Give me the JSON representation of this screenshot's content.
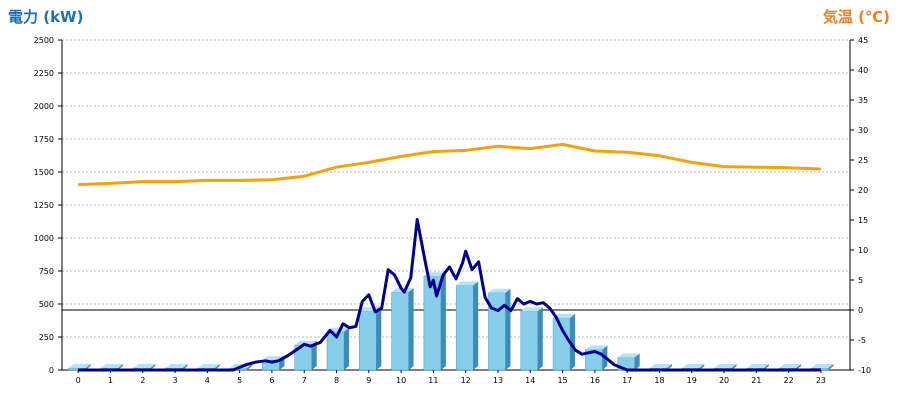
{
  "chart_data": {
    "type": "bar",
    "left_axis": {
      "label": "電力 (kW)",
      "color": "#1f6fb5",
      "min": 0,
      "max": 2500,
      "ticks": [
        0,
        250,
        500,
        750,
        1000,
        1250,
        1500,
        1750,
        2000,
        2250,
        2500
      ]
    },
    "right_axis": {
      "label": "気温 (℃)",
      "color": "#f07f1e",
      "min": -10,
      "max": 45,
      "ticks": [
        -10,
        -5,
        0,
        5,
        10,
        15,
        20,
        25,
        30,
        35,
        40,
        45
      ]
    },
    "categories": [
      "0",
      "1",
      "2",
      "3",
      "4",
      "5",
      "6",
      "7",
      "8",
      "9",
      "10",
      "11",
      "12",
      "13",
      "14",
      "15",
      "16",
      "17",
      "18",
      "19",
      "20",
      "21",
      "22",
      "23"
    ],
    "series": [
      {
        "kind": "bar",
        "axis": "left",
        "color": "#87ceea",
        "values": [
          15,
          15,
          15,
          15,
          15,
          15,
          75,
          190,
          290,
          445,
          590,
          710,
          640,
          585,
          445,
          395,
          155,
          95,
          15,
          15,
          15,
          15,
          15,
          15
        ]
      },
      {
        "kind": "line",
        "axis": "left",
        "color": "#00008b",
        "x": [
          0,
          0.5,
          1,
          1.5,
          2,
          2.5,
          3,
          3.5,
          4,
          4.5,
          4.8,
          5,
          5.2,
          5.5,
          5.8,
          6,
          6.2,
          6.5,
          6.8,
          7,
          7.2,
          7.5,
          7.8,
          8,
          8.2,
          8.4,
          8.6,
          8.8,
          9,
          9.2,
          9.4,
          9.6,
          9.8,
          10,
          10.1,
          10.3,
          10.5,
          10.7,
          10.9,
          11,
          11.1,
          11.3,
          11.5,
          11.7,
          11.9,
          12,
          12.2,
          12.4,
          12.6,
          12.8,
          13,
          13.2,
          13.4,
          13.6,
          13.8,
          14,
          14.2,
          14.4,
          14.6,
          14.8,
          15,
          15.2,
          15.4,
          15.6,
          15.8,
          16,
          16.2,
          16.4,
          16.6,
          16.8,
          17,
          17.2,
          17.4,
          17.6,
          18,
          18.5,
          19,
          20,
          21,
          22,
          23
        ],
        "values": [
          0,
          0,
          0,
          0,
          0,
          0,
          0,
          0,
          0,
          0,
          0,
          20,
          40,
          60,
          70,
          60,
          70,
          110,
          160,
          195,
          180,
          210,
          300,
          250,
          350,
          320,
          330,
          520,
          570,
          440,
          470,
          760,
          720,
          620,
          590,
          700,
          1140,
          880,
          630,
          680,
          560,
          720,
          780,
          690,
          810,
          900,
          760,
          820,
          550,
          470,
          450,
          490,
          450,
          540,
          500,
          520,
          500,
          510,
          470,
          400,
          300,
          220,
          150,
          120,
          130,
          140,
          120,
          80,
          40,
          20,
          0,
          0,
          0,
          0,
          0,
          0,
          0,
          0,
          0,
          0,
          0
        ]
      },
      {
        "kind": "line",
        "axis": "right",
        "color": "#f5a20a",
        "x": [
          0,
          1,
          2,
          3,
          4,
          5,
          6,
          7,
          8,
          9,
          10,
          11,
          12,
          13,
          14,
          15,
          16,
          17,
          18,
          19,
          20,
          21,
          22,
          23
        ],
        "values": [
          20.9,
          21.1,
          21.4,
          21.4,
          21.6,
          21.6,
          21.7,
          22.3,
          23.8,
          24.6,
          25.6,
          26.4,
          26.6,
          27.3,
          26.9,
          27.6,
          26.5,
          26.3,
          25.7,
          24.6,
          23.9,
          23.8,
          23.7,
          23.5
        ]
      }
    ]
  }
}
